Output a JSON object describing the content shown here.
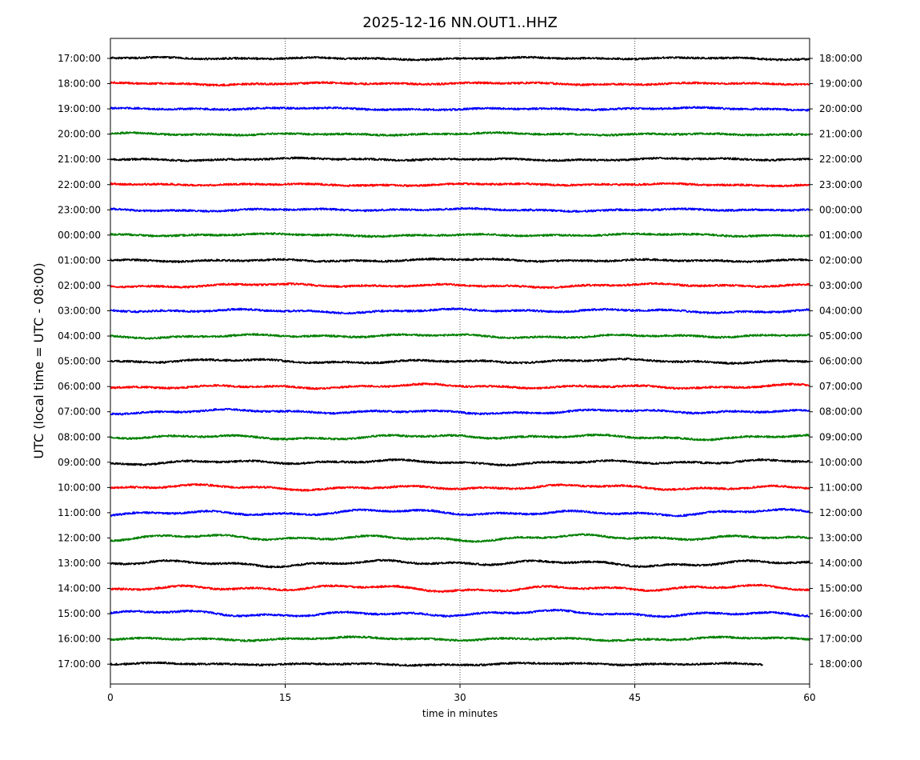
{
  "chart_data": {
    "type": "line",
    "title": "2025-12-16 NN.OUT1..HHZ",
    "xlabel": "time in minutes",
    "ylabel": "UTC (local time = UTC - 08:00)",
    "xlim": [
      0,
      60
    ],
    "xticks": [
      0,
      15,
      30,
      45,
      60
    ],
    "xgrid": [
      15,
      30,
      45
    ],
    "colors": [
      "#000000",
      "#ff0000",
      "#0000ff",
      "#008000"
    ],
    "rows": [
      {
        "left": "17:00:00",
        "right": "18:00:00",
        "end_min": 60,
        "amp": 1.0
      },
      {
        "left": "18:00:00",
        "right": "19:00:00",
        "end_min": 60,
        "amp": 1.0
      },
      {
        "left": "19:00:00",
        "right": "20:00:00",
        "end_min": 60,
        "amp": 1.0
      },
      {
        "left": "20:00:00",
        "right": "21:00:00",
        "end_min": 60,
        "amp": 1.0
      },
      {
        "left": "21:00:00",
        "right": "22:00:00",
        "end_min": 60,
        "amp": 1.0
      },
      {
        "left": "22:00:00",
        "right": "23:00:00",
        "end_min": 60,
        "amp": 1.0
      },
      {
        "left": "23:00:00",
        "right": "00:00:00",
        "end_min": 60,
        "amp": 1.1
      },
      {
        "left": "00:00:00",
        "right": "01:00:00",
        "end_min": 60,
        "amp": 1.1
      },
      {
        "left": "01:00:00",
        "right": "02:00:00",
        "end_min": 60,
        "amp": 1.2
      },
      {
        "left": "02:00:00",
        "right": "03:00:00",
        "end_min": 60,
        "amp": 1.5
      },
      {
        "left": "03:00:00",
        "right": "04:00:00",
        "end_min": 60,
        "amp": 1.6
      },
      {
        "left": "04:00:00",
        "right": "05:00:00",
        "end_min": 60,
        "amp": 1.6
      },
      {
        "left": "05:00:00",
        "right": "06:00:00",
        "end_min": 60,
        "amp": 1.7
      },
      {
        "left": "06:00:00",
        "right": "07:00:00",
        "end_min": 60,
        "amp": 1.8
      },
      {
        "left": "07:00:00",
        "right": "08:00:00",
        "end_min": 60,
        "amp": 1.8
      },
      {
        "left": "08:00:00",
        "right": "09:00:00",
        "end_min": 60,
        "amp": 2.0
      },
      {
        "left": "09:00:00",
        "right": "10:00:00",
        "end_min": 60,
        "amp": 2.0
      },
      {
        "left": "10:00:00",
        "right": "11:00:00",
        "end_min": 60,
        "amp": 2.1
      },
      {
        "left": "11:00:00",
        "right": "12:00:00",
        "end_min": 60,
        "amp": 2.5
      },
      {
        "left": "12:00:00",
        "right": "13:00:00",
        "end_min": 60,
        "amp": 2.6
      },
      {
        "left": "13:00:00",
        "right": "14:00:00",
        "end_min": 60,
        "amp": 2.6
      },
      {
        "left": "14:00:00",
        "right": "15:00:00",
        "end_min": 60,
        "amp": 2.7
      },
      {
        "left": "15:00:00",
        "right": "16:00:00",
        "end_min": 60,
        "amp": 2.5
      },
      {
        "left": "16:00:00",
        "right": "17:00:00",
        "end_min": 60,
        "amp": 1.5
      },
      {
        "left": "17:00:00",
        "right": "18:00:00",
        "end_min": 56,
        "amp": 1.0
      }
    ]
  }
}
